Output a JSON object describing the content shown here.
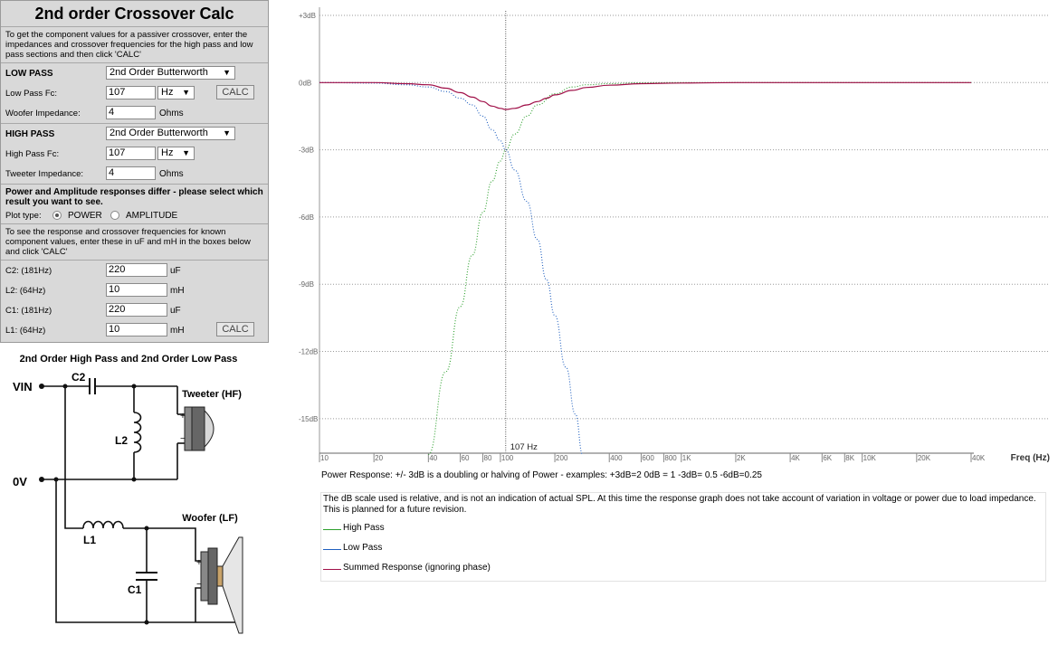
{
  "calc": {
    "title": "2nd order Crossover Calc",
    "intro": "To get the component values for a passiver crossover, enter the impedances and crossover frequencies for the high pass and low pass sections and then click 'CALC'",
    "low_pass": {
      "heading": "LOW PASS",
      "filter_type": "2nd Order Butterworth",
      "fc_label": "Low Pass Fc:",
      "fc_value": "107",
      "fc_unit": "Hz",
      "calc_label": "CALC",
      "impedance_label": "Woofer Impedance:",
      "impedance_value": "4",
      "impedance_unit": "Ohms"
    },
    "high_pass": {
      "heading": "HIGH PASS",
      "filter_type": "2nd Order Butterworth",
      "fc_label": "High Pass Fc:",
      "fc_value": "107",
      "fc_unit": "Hz",
      "impedance_label": "Tweeter Impedance:",
      "impedance_value": "4",
      "impedance_unit": "Ohms"
    },
    "plot_note": "Power and Amplitude responses differ - please select which result you want to see.",
    "plot_type": {
      "label": "Plot type:",
      "power_label": "POWER",
      "amplitude_label": "AMPLITUDE",
      "selected": "POWER"
    },
    "known_note": "To see the response and crossover frequencies for known component values, enter these in uF and mH in the boxes below and click 'CALC'",
    "components": [
      {
        "label": "C2: (181Hz)",
        "value": "220",
        "unit": "uF"
      },
      {
        "label": "L2: (64Hz)",
        "value": "10",
        "unit": "mH"
      },
      {
        "label": "C1: (181Hz)",
        "value": "220",
        "unit": "uF"
      },
      {
        "label": "L1: (64Hz)",
        "value": "10",
        "unit": "mH"
      }
    ],
    "calc2_label": "CALC"
  },
  "circuit": {
    "title": "2nd Order High Pass and 2nd Order Low Pass",
    "vin": "VIN",
    "zero_v": "0V",
    "c2": "C2",
    "l2": "L2",
    "l1": "L1",
    "c1": "C1",
    "tweeter": "Tweeter (HF)",
    "woofer": "Woofer (LF)"
  },
  "chart_data": {
    "type": "line",
    "xscale": "log",
    "xlim": [
      10,
      40000
    ],
    "ylim": [
      -16.5,
      3.2
    ],
    "y_ticks": [
      3,
      0,
      -3,
      -6,
      -9,
      -12,
      -15
    ],
    "y_tick_labels": [
      "+3dB",
      "0dB",
      "-3dB",
      "-6dB",
      "-9dB",
      "-12dB",
      "-15dB"
    ],
    "x_ticks": [
      10,
      20,
      40,
      60,
      80,
      100,
      200,
      400,
      600,
      800,
      1000,
      2000,
      4000,
      6000,
      8000,
      10000,
      20000,
      40000
    ],
    "x_tick_labels": [
      "10",
      "20",
      "40",
      "60",
      "80",
      "100",
      "200",
      "400",
      "600",
      "800",
      "1K",
      "2K",
      "4K",
      "6K",
      "8K",
      "10K",
      "20K",
      "40K"
    ],
    "xlabel": "Freq (Hz)",
    "crossover": {
      "x": 107,
      "label": "107 Hz"
    },
    "grid": true,
    "series": [
      {
        "name": "High Pass",
        "color": "#2ca02c",
        "style": "dotted",
        "x": [
          40,
          50,
          60,
          70,
          80,
          90,
          100,
          107,
          120,
          140,
          160,
          200,
          250,
          300,
          400,
          600,
          1000,
          2000,
          10000,
          40000
        ],
        "y": [
          -16.6,
          -12.9,
          -10.0,
          -7.7,
          -5.8,
          -4.4,
          -3.5,
          -3.0,
          -2.3,
          -1.5,
          -1.0,
          -0.5,
          -0.2,
          -0.1,
          -0.05,
          -0.01,
          0,
          0,
          0,
          0
        ]
      },
      {
        "name": "Low Pass",
        "color": "#1f5fbf",
        "style": "dotted",
        "x": [
          10,
          20,
          30,
          40,
          50,
          60,
          70,
          80,
          90,
          100,
          107,
          120,
          140,
          160,
          180,
          200,
          230,
          260,
          285
        ],
        "y": [
          0,
          -0.02,
          -0.1,
          -0.2,
          -0.4,
          -0.7,
          -1.0,
          -1.5,
          -2.1,
          -2.6,
          -3.0,
          -3.9,
          -5.3,
          -7.0,
          -8.8,
          -10.4,
          -12.7,
          -14.8,
          -16.6
        ]
      },
      {
        "name": "Summed Response (ignoring phase)",
        "color": "#a01048",
        "style": "solid",
        "x": [
          10,
          20,
          30,
          40,
          50,
          60,
          70,
          80,
          90,
          100,
          107,
          120,
          140,
          160,
          180,
          200,
          250,
          300,
          400,
          600,
          1000,
          2000,
          10000,
          40000
        ],
        "y": [
          0,
          0,
          -0.05,
          -0.1,
          -0.25,
          -0.45,
          -0.65,
          -0.85,
          -1.05,
          -1.15,
          -1.2,
          -1.15,
          -1.0,
          -0.85,
          -0.7,
          -0.55,
          -0.35,
          -0.22,
          -0.12,
          -0.05,
          -0.02,
          0,
          0,
          0
        ]
      }
    ]
  },
  "notes": {
    "power_response": "Power Response: +/- 3dB is a doubling or halving of Power - examples: +3dB=2  0dB = 1  -3dB= 0.5  -6dB=0.25",
    "disclaimer": "The dB scale used is relative, and is not an indication of actual SPL. At this time the response graph does not take account of variation in voltage or power due to load impedance. This is planned for a future revision."
  },
  "legend": [
    {
      "label": "High Pass",
      "color": "#2ca02c"
    },
    {
      "label": "Low Pass",
      "color": "#1f5fbf"
    },
    {
      "label": "Summed Response (ignoring phase)",
      "color": "#a01048"
    }
  ]
}
